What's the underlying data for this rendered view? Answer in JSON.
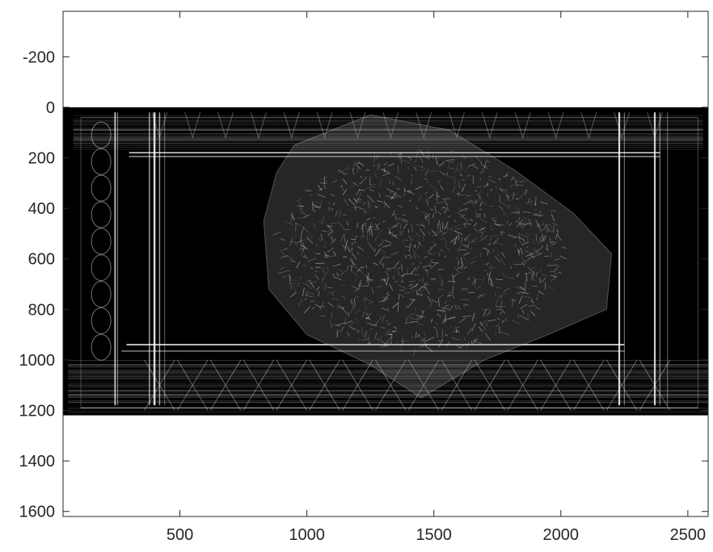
{
  "chart_data": {
    "type": "heatmap",
    "title": "",
    "xlabel": "",
    "ylabel": "",
    "xlim": [
      40,
      2580
    ],
    "ylim": [
      -380,
      1620
    ],
    "y_reversed": true,
    "x_ticks": [
      500,
      1000,
      1500,
      2000,
      2500
    ],
    "y_ticks": [
      -200,
      0,
      200,
      400,
      600,
      800,
      1000,
      1200,
      1400,
      1600
    ],
    "grid": false,
    "image_extent": {
      "x": [
        40,
        2580
      ],
      "y": [
        0,
        1220
      ]
    },
    "colormap": "gray",
    "background_color": "#000000",
    "axes_color": "#262626",
    "figure_background": "#ffffff"
  }
}
